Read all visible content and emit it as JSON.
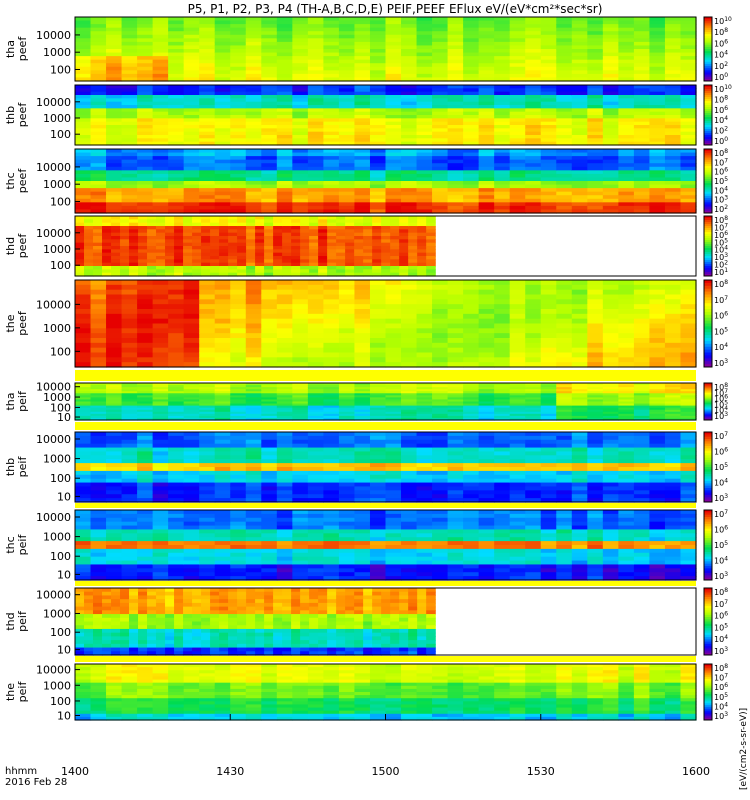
{
  "title": "P5, P1, P2, P3, P4 (TH-A,B,C,D,E) PEIF,PEEF EFlux eV/(eV*cm²*sec*sr)",
  "time_label_line1": "hhmm",
  "time_label_line2": "2016 Feb 28",
  "side_units": "[eV/(cm2-s-sr-eV)]",
  "chart_data": [
    {
      "type": "heatmap",
      "probe": "tha",
      "species": "peef",
      "ylabel": [
        "tha",
        "peef"
      ],
      "yticks": [
        "10000",
        "1000",
        "100"
      ],
      "cbar_ticks": [
        "10^10",
        "10^8",
        "10^6",
        "10^4",
        "10^2",
        "10^0"
      ],
      "data_end_frac": 1.0
    },
    {
      "type": "heatmap",
      "probe": "thb",
      "species": "peef",
      "ylabel": [
        "thb",
        "peef"
      ],
      "yticks": [
        "10000",
        "1000",
        "100"
      ],
      "cbar_ticks": [
        "10^10",
        "10^8",
        "10^6",
        "10^4",
        "10^2",
        "10^0"
      ],
      "data_end_frac": 1.0
    },
    {
      "type": "heatmap",
      "probe": "thc",
      "species": "peef",
      "ylabel": [
        "thc",
        "peef"
      ],
      "yticks": [
        "10000",
        "1000",
        "100"
      ],
      "cbar_ticks": [
        "10^8",
        "10^7",
        "10^6",
        "10^5",
        "10^4",
        "10^3",
        "10^2"
      ],
      "data_end_frac": 1.0
    },
    {
      "type": "heatmap",
      "probe": "thd",
      "species": "peef",
      "ylabel": [
        "thd",
        "peef"
      ],
      "yticks": [
        "10000",
        "1000",
        "100"
      ],
      "cbar_ticks": [
        "10^8",
        "10^7",
        "10^6",
        "10^5",
        "10^4",
        "10^3",
        "10^2",
        "10^1"
      ],
      "data_end_frac": 0.58
    },
    {
      "type": "heatmap",
      "probe": "the",
      "species": "peef",
      "ylabel": [
        "the",
        "peef"
      ],
      "yticks": [
        "10000",
        "1000",
        "100"
      ],
      "cbar_ticks": [
        "10^8",
        "10^7",
        "10^6",
        "10^5",
        "10^4",
        "10^3"
      ],
      "data_end_frac": 1.0
    },
    {
      "type": "heatmap",
      "probe": "tha",
      "species": "peif",
      "ylabel": [
        "tha",
        "peif"
      ],
      "yticks": [
        "10000",
        "1000",
        "100",
        "10"
      ],
      "cbar_ticks": [
        "10^8",
        "10^7",
        "10^6",
        "10^5",
        "10^4",
        "10^3"
      ],
      "data_end_frac": 1.0
    },
    {
      "type": "heatmap",
      "probe": "thb",
      "species": "peif",
      "ylabel": [
        "thb",
        "peif"
      ],
      "yticks": [
        "10000",
        "1000",
        "100",
        "10"
      ],
      "cbar_ticks": [
        "10^7",
        "10^6",
        "10^5",
        "10^4",
        "10^3"
      ],
      "data_end_frac": 1.0
    },
    {
      "type": "heatmap",
      "probe": "thc",
      "species": "peif",
      "ylabel": [
        "thc",
        "peif"
      ],
      "yticks": [
        "10000",
        "1000",
        "100",
        "10"
      ],
      "cbar_ticks": [
        "10^7",
        "10^6",
        "10^5",
        "10^4",
        "10^3"
      ],
      "data_end_frac": 1.0
    },
    {
      "type": "heatmap",
      "probe": "thd",
      "species": "peif",
      "ylabel": [
        "thd",
        "peif"
      ],
      "yticks": [
        "10000",
        "1000",
        "100",
        "10"
      ],
      "cbar_ticks": [
        "10^8",
        "10^7",
        "10^6",
        "10^5",
        "10^4",
        "10^3"
      ],
      "data_end_frac": 0.58
    },
    {
      "type": "heatmap",
      "probe": "the",
      "species": "peif",
      "ylabel": [
        "the",
        "peif"
      ],
      "yticks": [
        "10000",
        "1000",
        "100",
        "10"
      ],
      "cbar_ticks": [
        "10^8",
        "10^7",
        "10^6",
        "10^5",
        "10^4",
        "10^3"
      ],
      "data_end_frac": 1.0
    }
  ],
  "x_axis": {
    "ticks": [
      "1400",
      "1430",
      "1500",
      "1530",
      "1600"
    ],
    "range": [
      "1400",
      "1600"
    ],
    "unit": "hhmm"
  }
}
